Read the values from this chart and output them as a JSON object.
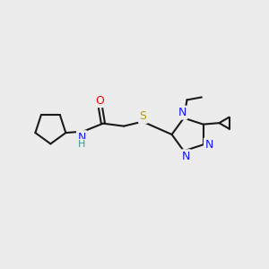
{
  "bg_color": "#ececec",
  "bond_color": "#1a1a1a",
  "bond_lw": 1.5,
  "N_color": "#1414ff",
  "O_color": "#ff0000",
  "S_color": "#b8a000",
  "NH_color": "#1414ff",
  "H_color": "#339999",
  "xlim": [
    0,
    10
  ],
  "ylim": [
    0,
    10
  ]
}
